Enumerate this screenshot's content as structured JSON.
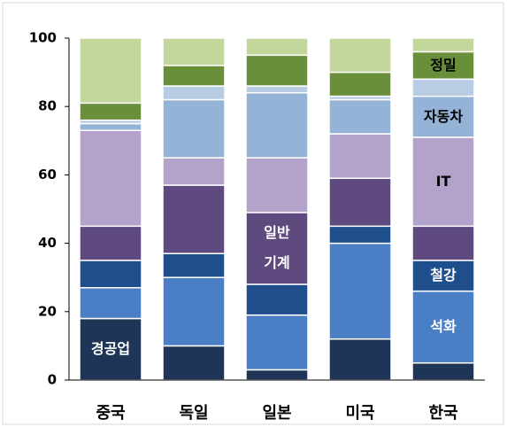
{
  "chart_data": {
    "type": "stacked_bar",
    "categories": [
      "중국",
      "독일",
      "일본",
      "미국",
      "한국"
    ],
    "series": [
      {
        "name": "경공업",
        "color": "#1f3557",
        "values": [
          18,
          10,
          3,
          12,
          5
        ]
      },
      {
        "name": "석화",
        "color": "#4a7ec5",
        "values": [
          9,
          20,
          16,
          28,
          21
        ]
      },
      {
        "name": "철강",
        "color": "#1f4e8c",
        "values": [
          8,
          7,
          9,
          5,
          9
        ]
      },
      {
        "name": "일반\n기계",
        "color": "#5e4a7e",
        "values": [
          10,
          20,
          21,
          14,
          10
        ]
      },
      {
        "name": "IT",
        "color": "#b3a2c9",
        "values": [
          28,
          8,
          16,
          13,
          26
        ]
      },
      {
        "name": "자동차",
        "color": "#95b3d7",
        "values": [
          2,
          17,
          19,
          10,
          12
        ]
      },
      {
        "color": "#b8cce4",
        "values": [
          1,
          4,
          2,
          1,
          5
        ]
      },
      {
        "name": "정밀",
        "color": "#6a8f3a",
        "values": [
          5,
          6,
          9,
          7,
          8
        ]
      },
      {
        "color": "#c3d69b",
        "values": [
          19,
          8,
          5,
          10,
          4
        ]
      }
    ],
    "ylim": [
      0,
      100
    ],
    "yticks": [
      0,
      20,
      40,
      60,
      80,
      100
    ]
  }
}
